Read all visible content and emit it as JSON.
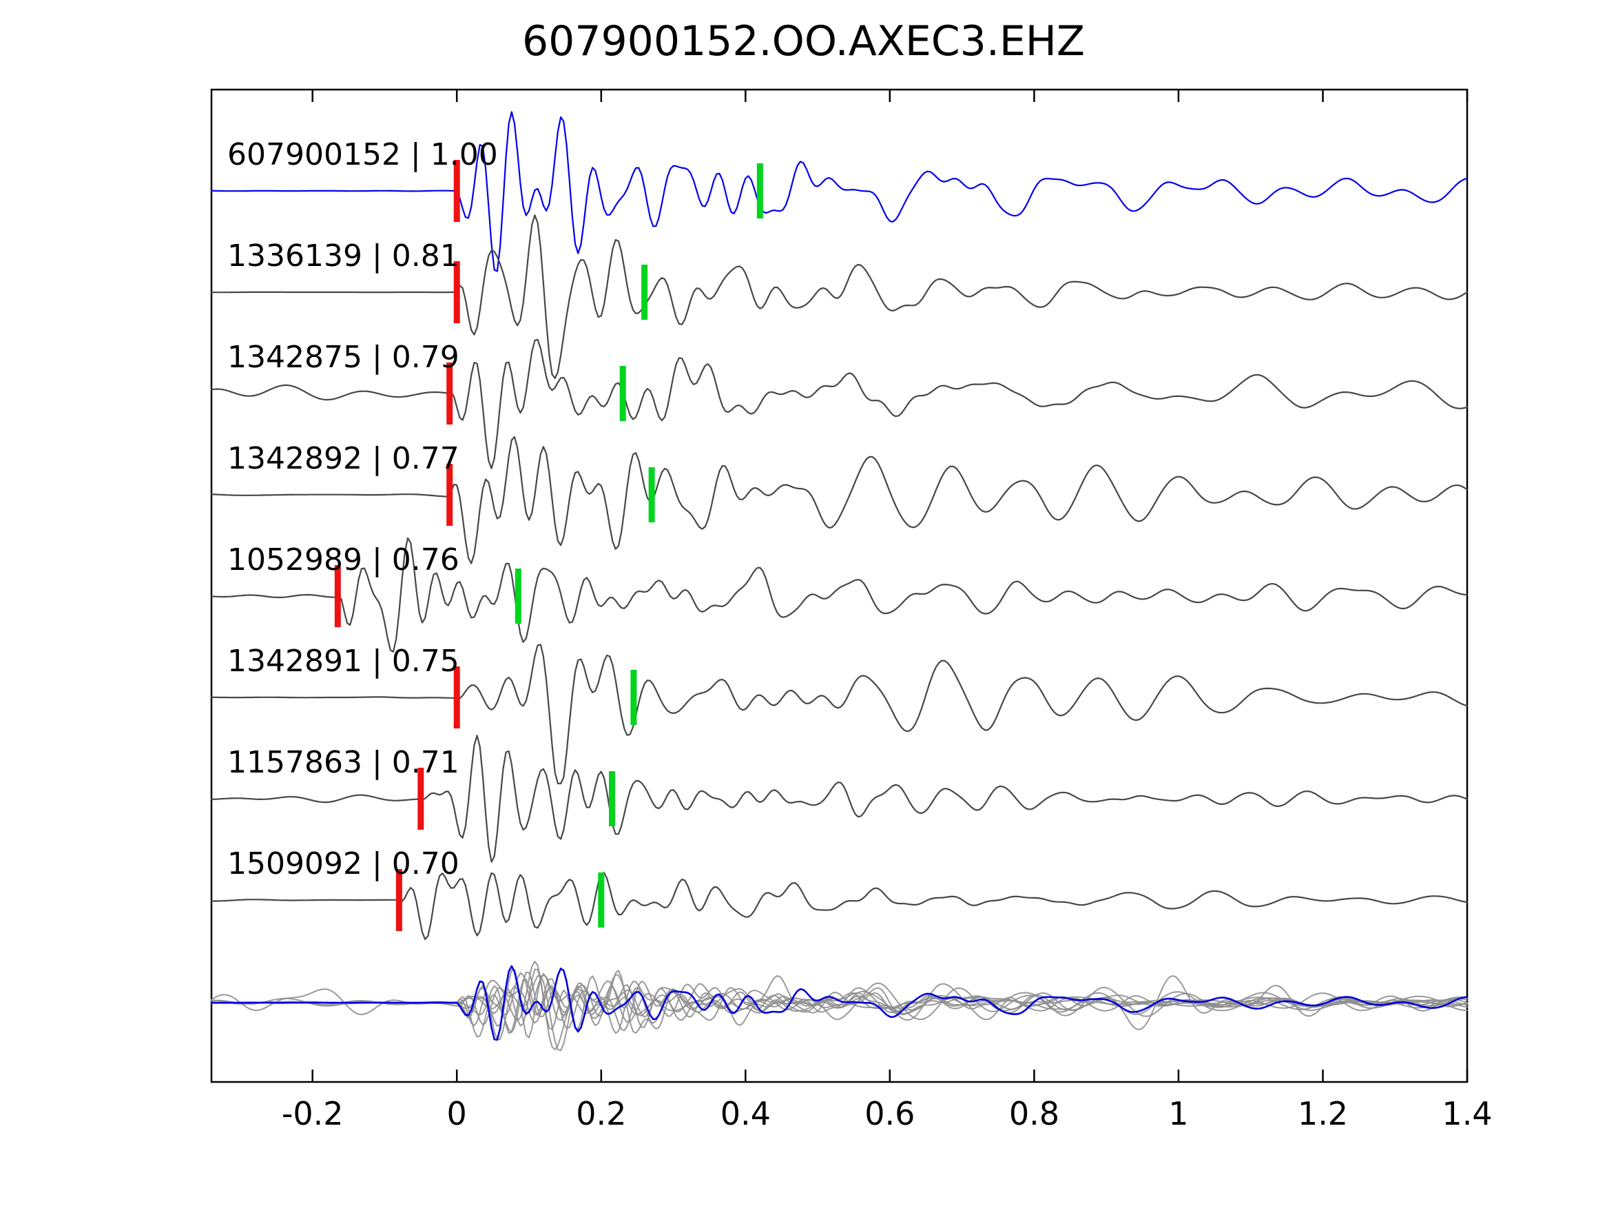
{
  "title": "607900152.OO.AXEC3.EHZ",
  "axis": {
    "x_ticks": [
      -0.2,
      0,
      0.2,
      0.4,
      0.6,
      0.8,
      1,
      1.2,
      1.4
    ],
    "x_tick_labels": [
      "-0.2",
      "0",
      "0.2",
      "0.4",
      "0.6",
      "0.8",
      "1",
      "1.2",
      "1.4"
    ],
    "xlim": [
      -0.34,
      1.4
    ]
  },
  "colors": {
    "reference_trace": "#0000ee",
    "trace": "#474747",
    "red_pick": "#ee1111",
    "green_pick": "#00d41e",
    "stack_gray": "#8e8e8e",
    "stack_blue": "#0000dd",
    "axis_line": "#000000",
    "text": "#000000"
  },
  "chart_data": {
    "type": "line",
    "title": "607900152.OO.AXEC3.EHZ",
    "xlabel": "",
    "ylabel": "",
    "xlim": [
      -0.34,
      1.4
    ],
    "x_ticks": [
      -0.2,
      0,
      0.2,
      0.4,
      0.6,
      0.8,
      1,
      1.2,
      1.4
    ],
    "legend": "none",
    "grid": false,
    "description": "Template-matching seismogram panel: reference waveform (blue) and detected event waveforms (gray), each labeled 'event_id | correlation'. Red bars = template pick time, green bars = secondary pick. Bottom row: all traces aligned and overlaid (gray) with reference in blue.",
    "traces": [
      {
        "id": "607900152",
        "score": "1.00",
        "label": "607900152 | 1.00",
        "is_reference": true,
        "red_pick": 0.0,
        "green_pick": 0.42,
        "viz": {
          "seed": 101,
          "amp": 95,
          "noise": 1.5,
          "coda": 0.3,
          "fscale": 1.0
        }
      },
      {
        "id": "1336139",
        "score": "0.81",
        "label": "1336139 | 0.81",
        "is_reference": false,
        "red_pick": 0.0,
        "green_pick": 0.26,
        "viz": {
          "seed": 202,
          "amp": 82,
          "noise": 2.5,
          "coda": 0.28,
          "fscale": 1.0
        }
      },
      {
        "id": "1342875",
        "score": "0.79",
        "label": "1342875 | 0.79",
        "is_reference": false,
        "red_pick": -0.01,
        "green_pick": 0.23,
        "viz": {
          "seed": 303,
          "amp": 86,
          "noise": 14,
          "coda": 0.45,
          "fscale": 1.0
        }
      },
      {
        "id": "1342892",
        "score": "0.77",
        "label": "1342892 | 0.77",
        "is_reference": false,
        "red_pick": -0.01,
        "green_pick": 0.27,
        "viz": {
          "seed": 404,
          "amp": 86,
          "noise": 7,
          "coda": 0.45,
          "fscale": 0.9
        }
      },
      {
        "id": "1052989",
        "score": "0.76",
        "label": "1052989 | 0.76",
        "is_reference": false,
        "red_pick": -0.165,
        "green_pick": 0.085,
        "viz": {
          "seed": 505,
          "amp": 82,
          "noise": 5,
          "coda": 0.3,
          "fscale": 1.1
        }
      },
      {
        "id": "1342891",
        "score": "0.75",
        "label": "1342891 | 0.75",
        "is_reference": false,
        "red_pick": 0.0,
        "green_pick": 0.245,
        "viz": {
          "seed": 606,
          "amp": 86,
          "noise": 4,
          "coda": 0.42,
          "fscale": 0.95
        }
      },
      {
        "id": "1157863",
        "score": "0.71",
        "label": "1157863 | 0.71",
        "is_reference": false,
        "red_pick": -0.05,
        "green_pick": 0.215,
        "viz": {
          "seed": 707,
          "amp": 78,
          "noise": 6,
          "coda": 0.2,
          "fscale": 1.15
        }
      },
      {
        "id": "1509092",
        "score": "0.70",
        "label": "1509092 | 0.70",
        "is_reference": false,
        "red_pick": -0.08,
        "green_pick": 0.2,
        "viz": {
          "seed": 808,
          "amp": 78,
          "noise": 3,
          "coda": 0.16,
          "fscale": 1.0
        }
      }
    ],
    "stack": {
      "description": "aligned overlay of all detected traces (gray) with reference trace (blue)",
      "gray_amp": 44,
      "blue_amp": 44,
      "extra_gray": [
        {
          "seed": 909,
          "amp": 44,
          "noise": 40,
          "coda": 0.3,
          "fscale": 1.0
        },
        {
          "seed": 1010,
          "amp": 44,
          "noise": 12,
          "coda": 0.25,
          "fscale": 1.05
        }
      ]
    }
  }
}
